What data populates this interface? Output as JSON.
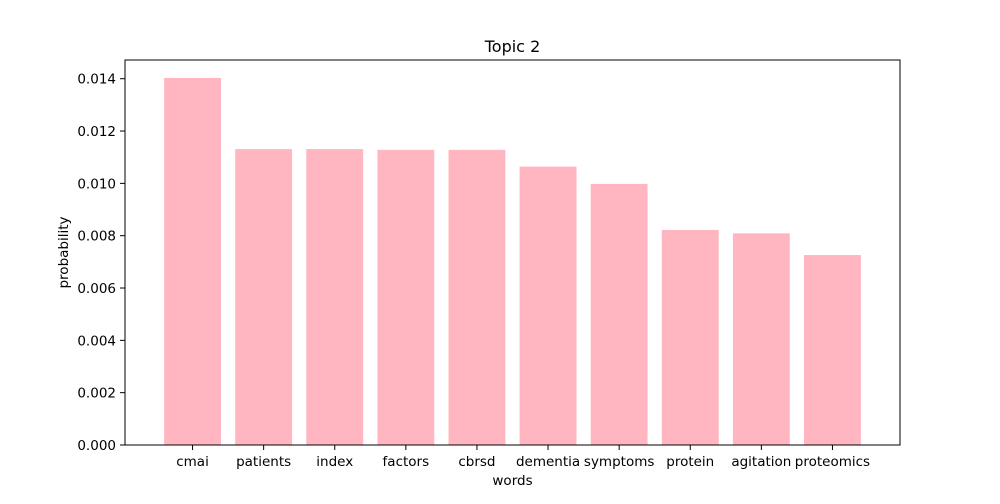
{
  "chart_data": {
    "type": "bar",
    "title": "Topic 2",
    "xlabel": "words",
    "ylabel": "probability",
    "categories": [
      "cmai",
      "patients",
      "index",
      "factors",
      "cbrsd",
      "dementia",
      "symptoms",
      "protein",
      "agitation",
      "proteomics"
    ],
    "values": [
      0.01403,
      0.01131,
      0.01131,
      0.01128,
      0.01128,
      0.01064,
      0.00998,
      0.00822,
      0.00809,
      0.00726
    ],
    "ylim": [
      0,
      0.014715
    ],
    "yticks": [
      "0.000",
      "0.002",
      "0.004",
      "0.006",
      "0.008",
      "0.010",
      "0.012",
      "0.014"
    ],
    "bar_color": "#ffb6c1",
    "grid": false,
    "legend": "none"
  }
}
